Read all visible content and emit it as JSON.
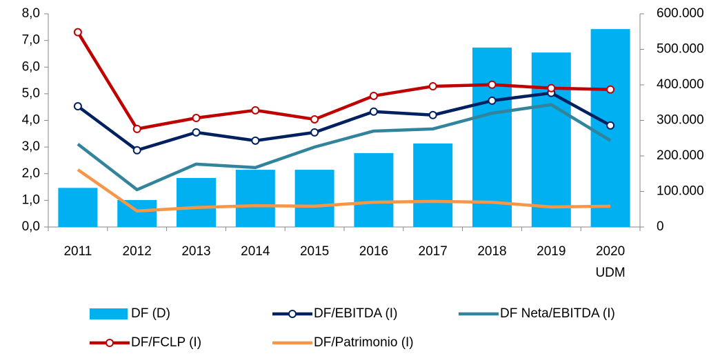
{
  "chart_data": {
    "type": "combo",
    "categories": [
      "2011",
      "2012",
      "2013",
      "2014",
      "2015",
      "2016",
      "2017",
      "2018",
      "2019",
      "2020\nUDM"
    ],
    "series": [
      {
        "name": "DF (D)",
        "type": "bar",
        "axis": "y2",
        "color": "#00b0f0",
        "values": [
          110000,
          76000,
          138000,
          161000,
          161000,
          208000,
          235000,
          505000,
          491000,
          557000
        ]
      },
      {
        "name": "DF/EBITDA (I)",
        "type": "line",
        "marker": true,
        "color": "#002060",
        "values": [
          4.53,
          2.88,
          3.55,
          3.24,
          3.55,
          4.33,
          4.2,
          4.74,
          5.03,
          3.81
        ]
      },
      {
        "name": "DF Neta/EBITDA (I)",
        "type": "line",
        "marker": false,
        "color": "#31849b",
        "values": [
          3.11,
          1.4,
          2.36,
          2.23,
          3.0,
          3.6,
          3.68,
          4.27,
          4.59,
          3.24
        ]
      },
      {
        "name": "DF/FCLP (I)",
        "type": "line",
        "marker": true,
        "color": "#c00000",
        "values": [
          7.31,
          3.68,
          4.09,
          4.38,
          4.04,
          4.92,
          5.28,
          5.34,
          5.21,
          5.16
        ]
      },
      {
        "name": "DF/Patrimonio (I)",
        "type": "line",
        "marker": false,
        "color": "#f79646",
        "values": [
          2.15,
          0.6,
          0.73,
          0.8,
          0.78,
          0.93,
          0.96,
          0.93,
          0.75,
          0.78
        ]
      }
    ],
    "ylim": [
      0,
      8
    ],
    "yticks": [
      {
        "value": 0,
        "label": "0,0"
      },
      {
        "value": 1,
        "label": "1,0"
      },
      {
        "value": 2,
        "label": "2,0"
      },
      {
        "value": 3,
        "label": "3,0"
      },
      {
        "value": 4,
        "label": "4,0"
      },
      {
        "value": 5,
        "label": "5,0"
      },
      {
        "value": 6,
        "label": "6,0"
      },
      {
        "value": 7,
        "label": "7,0"
      },
      {
        "value": 8,
        "label": "8,0"
      }
    ],
    "y2lim": [
      0,
      600000
    ],
    "y2ticks": [
      0,
      {
        "value": 100000,
        "label": "100.000"
      },
      {
        "value": 200000,
        "label": "200.000"
      },
      {
        "value": 300000,
        "label": "300.000"
      },
      {
        "value": 400000,
        "label": "400.000"
      },
      {
        "value": 500000,
        "label": "500.000"
      },
      {
        "value": 600000,
        "label": "600.000"
      }
    ],
    "grid": false,
    "legend": "bottom"
  }
}
